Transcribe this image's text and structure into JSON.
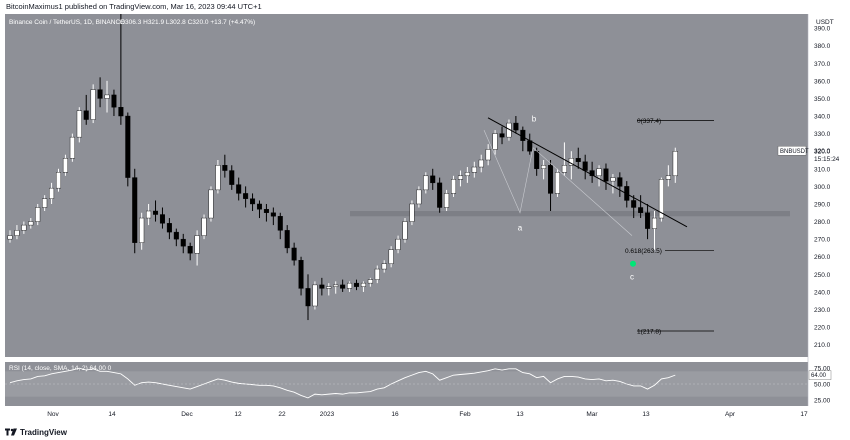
{
  "header": {
    "published": "BitcoinMaximus1 published on TradingView.com, Mar 16, 2023 09:44 UTC+1"
  },
  "legend": {
    "symbol": "Binance Coin / TetherUS, 1D, BINANCE",
    "open_label": "O",
    "open": "306.3",
    "high_label": "H",
    "high": "321.9",
    "low_label": "L",
    "low": "302.8",
    "close_label": "C",
    "close": "320.0",
    "change": "+13.7 (+4.47%)"
  },
  "price_axis": {
    "unit": "USDT",
    "ticks": [
      "390.0",
      "380.0",
      "370.0",
      "360.0",
      "350.0",
      "340.0",
      "330.0",
      "320.0",
      "310.0",
      "300.0",
      "290.0",
      "280.0",
      "270.0",
      "260.0",
      "250.0",
      "240.0",
      "230.0",
      "220.0",
      "210.0"
    ],
    "last_price_symbol": "BNBUSDT",
    "last_price": "320.0",
    "countdown": "15:15:24"
  },
  "time_axis": {
    "ticks": [
      "Nov",
      "14",
      "Dec",
      "12",
      "22",
      "2023",
      "16",
      "Feb",
      "13",
      "Mar",
      "13",
      "Apr",
      "17"
    ]
  },
  "fib": [
    {
      "label": "0(337.4)"
    },
    {
      "label": "0.618(263.5)"
    },
    {
      "label": "1(217.8)"
    }
  ],
  "waves": [
    "a",
    "b",
    "c"
  ],
  "rsi": {
    "legend": "RSI (14, close, SMA, 14, 2)",
    "value": "64.00",
    "extra": "0",
    "ticks": [
      "75.00",
      "50.00",
      "25.00"
    ]
  },
  "footer": {
    "brand": "TradingView"
  },
  "colors": {
    "chart_bg": "#8e9097",
    "band": "#9a9ca2",
    "candle": "#ffffff",
    "rsi_line": "#ffffff",
    "trendline": "#000000",
    "support_zone": "#7d7f86",
    "marker": "#00e676"
  },
  "chart_data": {
    "type": "candlestick",
    "title": "Binance Coin / TetherUS, 1D, BINANCE",
    "ylabel": "USDT",
    "ylim": [
      203,
      398
    ],
    "x_ticks": [
      "Nov",
      "14",
      "Dec",
      "12",
      "22",
      "2023",
      "16",
      "Feb",
      "13",
      "Mar",
      "13",
      "Apr",
      "17"
    ],
    "series": [
      {
        "name": "BNBUSDT",
        "ohlc": [
          [
            270,
            275,
            268,
            272
          ],
          [
            272,
            278,
            270,
            275
          ],
          [
            275,
            280,
            273,
            278
          ],
          [
            278,
            282,
            276,
            280
          ],
          [
            280,
            290,
            278,
            288
          ],
          [
            288,
            295,
            286,
            293
          ],
          [
            293,
            302,
            290,
            299
          ],
          [
            299,
            310,
            297,
            308
          ],
          [
            308,
            318,
            306,
            316
          ],
          [
            316,
            330,
            314,
            328
          ],
          [
            328,
            345,
            325,
            343
          ],
          [
            343,
            352,
            335,
            338
          ],
          [
            338,
            358,
            336,
            355
          ],
          [
            355,
            362,
            345,
            350
          ],
          [
            350,
            360,
            342,
            352
          ],
          [
            352,
            355,
            340,
            345
          ],
          [
            345,
            398,
            335,
            340
          ],
          [
            340,
            342,
            300,
            305
          ],
          [
            305,
            310,
            262,
            268
          ],
          [
            268,
            285,
            264,
            282
          ],
          [
            282,
            290,
            278,
            286
          ],
          [
            286,
            292,
            280,
            284
          ],
          [
            284,
            288,
            276,
            279
          ],
          [
            279,
            282,
            270,
            274
          ],
          [
            274,
            276,
            266,
            270
          ],
          [
            270,
            273,
            262,
            266
          ],
          [
            266,
            268,
            258,
            262
          ],
          [
            262,
            275,
            255,
            272
          ],
          [
            272,
            284,
            270,
            282
          ],
          [
            282,
            300,
            280,
            298
          ],
          [
            298,
            315,
            296,
            312
          ],
          [
            312,
            318,
            305,
            309
          ],
          [
            309,
            312,
            298,
            301
          ],
          [
            301,
            305,
            292,
            296
          ],
          [
            296,
            300,
            288,
            293
          ],
          [
            293,
            296,
            286,
            290
          ],
          [
            290,
            292,
            282,
            287
          ],
          [
            287,
            290,
            280,
            285
          ],
          [
            285,
            288,
            278,
            283
          ],
          [
            283,
            285,
            270,
            275
          ],
          [
            275,
            278,
            262,
            265
          ],
          [
            265,
            268,
            255,
            258
          ],
          [
            258,
            260,
            238,
            242
          ],
          [
            242,
            250,
            224,
            232
          ],
          [
            232,
            246,
            230,
            244
          ],
          [
            244,
            248,
            238,
            242
          ],
          [
            242,
            245,
            238,
            243
          ],
          [
            243,
            246,
            239,
            244
          ],
          [
            244,
            247,
            240,
            242
          ],
          [
            242,
            246,
            240,
            245
          ],
          [
            245,
            247,
            241,
            243
          ],
          [
            243,
            246,
            240,
            245
          ],
          [
            245,
            248,
            243,
            247
          ],
          [
            247,
            255,
            245,
            253
          ],
          [
            253,
            258,
            251,
            256
          ],
          [
            256,
            266,
            254,
            264
          ],
          [
            264,
            272,
            262,
            270
          ],
          [
            270,
            282,
            268,
            280
          ],
          [
            280,
            292,
            278,
            290
          ],
          [
            290,
            300,
            288,
            298
          ],
          [
            298,
            308,
            296,
            306
          ],
          [
            306,
            310,
            298,
            302
          ],
          [
            302,
            305,
            285,
            288
          ],
          [
            288,
            298,
            286,
            296
          ],
          [
            296,
            306,
            294,
            304
          ],
          [
            304,
            309,
            300,
            306
          ],
          [
            306,
            311,
            302,
            308
          ],
          [
            308,
            314,
            305,
            311
          ],
          [
            311,
            318,
            308,
            315
          ],
          [
            315,
            324,
            312,
            321
          ],
          [
            321,
            332,
            318,
            330
          ],
          [
            330,
            334,
            324,
            328
          ],
          [
            328,
            338,
            326,
            336
          ],
          [
            336,
            340,
            330,
            332
          ],
          [
            332,
            334,
            320,
            326
          ],
          [
            326,
            330,
            318,
            320
          ],
          [
            320,
            322,
            306,
            310
          ],
          [
            310,
            315,
            304,
            312
          ],
          [
            312,
            315,
            286,
            296
          ],
          [
            296,
            310,
            294,
            308
          ],
          [
            308,
            325,
            306,
            312
          ],
          [
            312,
            320,
            304,
            316
          ],
          [
            316,
            322,
            310,
            314
          ],
          [
            314,
            318,
            304,
            309
          ],
          [
            309,
            314,
            302,
            306
          ],
          [
            306,
            312,
            300,
            310
          ],
          [
            310,
            313,
            298,
            303
          ],
          [
            303,
            307,
            296,
            305
          ],
          [
            305,
            308,
            294,
            300
          ],
          [
            300,
            303,
            288,
            292
          ],
          [
            292,
            295,
            282,
            288
          ],
          [
            288,
            295,
            282,
            285
          ],
          [
            285,
            290,
            270,
            276
          ],
          [
            276,
            286,
            264,
            282
          ],
          [
            282,
            305,
            280,
            304
          ],
          [
            304,
            312,
            300,
            306
          ],
          [
            306,
            322,
            302,
            320
          ]
        ]
      }
    ],
    "rsi_values": [
      52,
      55,
      57,
      58,
      62,
      63,
      66,
      68,
      70,
      72,
      75,
      72,
      74,
      70,
      70,
      68,
      66,
      58,
      48,
      52,
      53,
      52,
      50,
      48,
      46,
      44,
      42,
      46,
      50,
      54,
      58,
      56,
      53,
      51,
      50,
      49,
      48,
      48,
      47,
      44,
      40,
      37,
      32,
      28,
      34,
      33,
      34,
      35,
      34,
      36,
      36,
      37,
      38,
      42,
      44,
      50,
      55,
      60,
      64,
      68,
      70,
      66,
      56,
      60,
      64,
      65,
      66,
      67,
      69,
      71,
      74,
      72,
      74,
      74,
      68,
      66,
      60,
      62,
      52,
      58,
      62,
      62,
      61,
      58,
      57,
      58,
      55,
      56,
      54,
      50,
      47,
      47,
      42,
      48,
      58,
      60,
      64
    ]
  }
}
